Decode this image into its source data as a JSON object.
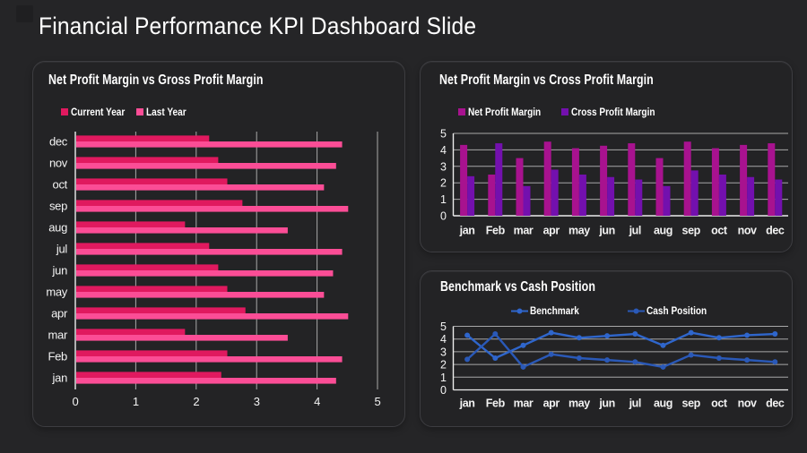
{
  "page": {
    "title": "Financial Performance KPI Dashboard Slide",
    "background": "#252527",
    "panel_background": "#232325",
    "panel_border": "#3d3d41",
    "text_color": "#ffffff",
    "gridline_color": "#a8a8a8",
    "axis_color": "#ededed"
  },
  "chart_data": [
    {
      "id": "net-vs-gross-hbar",
      "type": "bar",
      "orientation": "horizontal",
      "title": "Net Profit Margin vs Gross Profit Margin",
      "categories": [
        "dec",
        "nov",
        "oct",
        "sep",
        "aug",
        "jul",
        "jun",
        "may",
        "apr",
        "mar",
        "Feb",
        "jan"
      ],
      "series": [
        {
          "name": "Current Year",
          "color": "#e0195f",
          "values": [
            2.2,
            2.35,
            2.5,
            2.75,
            1.8,
            2.2,
            2.35,
            2.5,
            2.8,
            1.8,
            2.5,
            2.4
          ]
        },
        {
          "name": "Last Year",
          "color": "#fb4d96",
          "values": [
            4.4,
            4.3,
            4.1,
            4.5,
            3.5,
            4.4,
            4.25,
            4.1,
            4.5,
            3.5,
            4.4,
            4.3
          ]
        }
      ],
      "xlim": [
        0,
        5
      ],
      "xticks": [
        0,
        1,
        2,
        3,
        4,
        5
      ],
      "legend_position": "top-left",
      "grid": "vertical"
    },
    {
      "id": "net-vs-cross-vbar",
      "type": "bar",
      "orientation": "vertical",
      "title": "Net Profit Margin vs Cross Profit Margin",
      "categories": [
        "jan",
        "Feb",
        "mar",
        "apr",
        "may",
        "jun",
        "jul",
        "aug",
        "sep",
        "oct",
        "nov",
        "dec"
      ],
      "series": [
        {
          "name": "Net Profit Margin",
          "color": "#a8128f",
          "values": [
            4.3,
            2.5,
            3.5,
            4.5,
            4.1,
            4.25,
            4.4,
            3.5,
            4.5,
            4.1,
            4.3,
            4.4
          ]
        },
        {
          "name": "Cross Profit Margin",
          "color": "#7310ae",
          "values": [
            2.4,
            4.4,
            1.8,
            2.8,
            2.5,
            2.35,
            2.2,
            1.8,
            2.75,
            2.5,
            2.35,
            2.2
          ]
        }
      ],
      "ylim": [
        0,
        5
      ],
      "yticks": [
        0,
        1,
        2,
        3,
        4,
        5
      ],
      "legend_position": "top",
      "grid": "horizontal"
    },
    {
      "id": "benchmark-vs-cash-line",
      "type": "line",
      "title": "Benchmark vs Cash Position",
      "categories": [
        "jan",
        "Feb",
        "mar",
        "apr",
        "may",
        "jun",
        "jul",
        "aug",
        "sep",
        "oct",
        "nov",
        "dec"
      ],
      "series": [
        {
          "name": "Benchmark",
          "color": "#2f66cc",
          "values": [
            4.3,
            2.5,
            3.5,
            4.5,
            4.1,
            4.25,
            4.4,
            3.5,
            4.5,
            4.1,
            4.3,
            4.4
          ]
        },
        {
          "name": "Cash Position",
          "color": "#2a59b8",
          "values": [
            2.4,
            4.4,
            1.8,
            2.8,
            2.5,
            2.35,
            2.2,
            1.8,
            2.75,
            2.5,
            2.35,
            2.2
          ]
        }
      ],
      "ylim": [
        0,
        5
      ],
      "yticks": [
        0,
        1,
        2,
        3,
        4,
        5
      ],
      "legend_position": "top",
      "grid": "horizontal"
    }
  ]
}
